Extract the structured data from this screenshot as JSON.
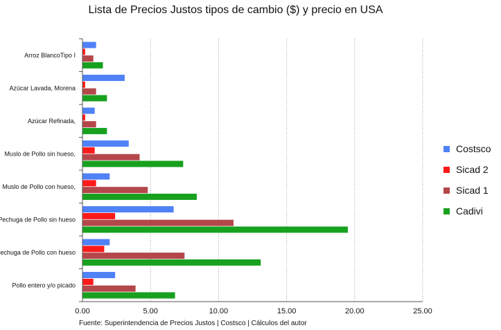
{
  "chart_data": {
    "type": "bar",
    "orientation": "horizontal",
    "title": "Lista de Precios Justos tipos de cambio ($)  y precio en USA",
    "source": "Fuente: Superintendencia de Precios Justos | Costsco | Cálculos del autor",
    "categories": [
      "Arroz BlancoTipo I",
      "Azúcar Lavada, Morena",
      "Azúcar Refinada,",
      "Muslo de Pollo sin hueso,",
      "Muslo de Pollo con hueso,",
      "Pechuga de Pollo sin hueso",
      "Pechuga de Pollo con hueso",
      "Pollo entero y/o picado"
    ],
    "series": [
      {
        "name": "Costsco",
        "color": "#4f81f7",
        "values": [
          1.0,
          3.1,
          0.9,
          3.4,
          2.0,
          6.7,
          2.0,
          2.4
        ]
      },
      {
        "name": "Sicad 2",
        "color": "#ff1a1a",
        "values": [
          0.2,
          0.2,
          0.2,
          0.9,
          1.0,
          2.4,
          1.6,
          0.8
        ]
      },
      {
        "name": "Sicad 1",
        "color": "#b4474a",
        "values": [
          0.8,
          1.0,
          1.0,
          4.2,
          4.8,
          11.1,
          7.5,
          3.9
        ]
      },
      {
        "name": "Cadivi",
        "color": "#17a11f",
        "values": [
          1.5,
          1.8,
          1.8,
          7.4,
          8.4,
          19.5,
          13.1,
          6.8
        ]
      }
    ],
    "xlim": [
      0,
      25
    ],
    "x_ticks": [
      "0.00",
      "5.00",
      "10.00",
      "15.00",
      "20.00",
      "25.00"
    ],
    "x_tick_values": [
      0,
      5,
      10,
      15,
      20,
      25
    ],
    "grid": "vertical dotted",
    "legend_position": "right"
  }
}
